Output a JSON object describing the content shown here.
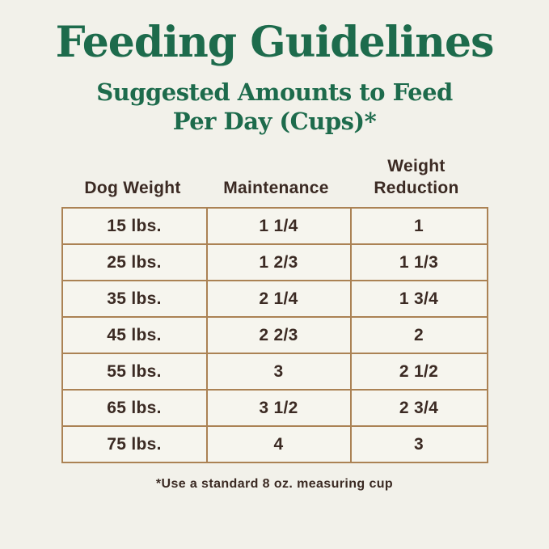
{
  "page": {
    "title": "Feeding Guidelines",
    "subtitle_line1": "Suggested Amounts to Feed",
    "subtitle_line2": "Per Day (Cups)*",
    "footnote": "*Use a standard 8 oz. measuring cup"
  },
  "colors": {
    "background": "#f2f1ea",
    "title_green": "#1d6b4c",
    "text_brown": "#3b2a23",
    "table_border_tan": "#ab8254",
    "cell_background": "#f6f5ee"
  },
  "chart_data": {
    "type": "table",
    "title": "Feeding Guidelines",
    "subtitle": "Suggested Amounts to Feed Per Day (Cups)*",
    "columns": [
      "Dog Weight",
      "Maintenance",
      "Weight Reduction"
    ],
    "rows": [
      [
        "15 lbs.",
        "1 1/4",
        "1"
      ],
      [
        "25 lbs.",
        "1 2/3",
        "1 1/3"
      ],
      [
        "35 lbs.",
        "2 1/4",
        "1 3/4"
      ],
      [
        "45 lbs.",
        "2 2/3",
        "2"
      ],
      [
        "55 lbs.",
        "3",
        "2 1/2"
      ],
      [
        "65 lbs.",
        "3 1/2",
        "2 3/4"
      ],
      [
        "75 lbs.",
        "4",
        "3"
      ]
    ],
    "footnote": "*Use a standard 8 oz. measuring cup",
    "units": "cups per day"
  }
}
